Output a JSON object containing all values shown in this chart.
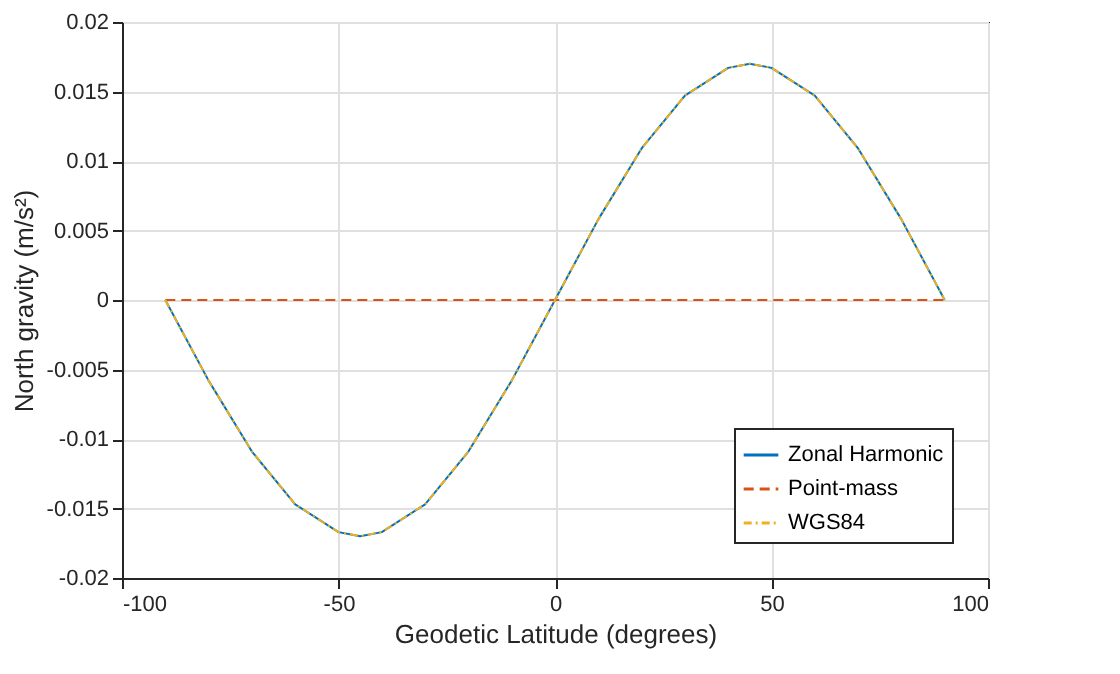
{
  "chart_data": {
    "type": "line",
    "xlabel": "Geodetic Latitude (degrees)",
    "ylabel": "North gravity (m/s²)",
    "xlim": [
      -100,
      100
    ],
    "xticks": [
      -100,
      -50,
      0,
      50,
      100
    ],
    "ylim": [
      -0.02,
      0.02
    ],
    "yticks": [
      -0.02,
      -0.015,
      -0.01,
      -0.005,
      0,
      0.005,
      0.01,
      0.015,
      0.02
    ],
    "grid": true,
    "legend": "bottom right",
    "series": [
      {
        "name": "Zonal Harmonic",
        "color": "#0072bd",
        "line_style": "solid",
        "x": [
          -90,
          -80,
          -70,
          -60,
          -50,
          -45,
          -40,
          -30,
          -20,
          -10,
          0,
          10,
          20,
          30,
          40,
          45,
          50,
          60,
          70,
          80,
          90
        ],
        "values": [
          0,
          -0.0058,
          -0.0109,
          -0.0147,
          -0.0167,
          -0.017,
          -0.0167,
          -0.0147,
          -0.0109,
          -0.0058,
          0,
          0.0058,
          0.0109,
          0.0147,
          0.0167,
          0.017,
          0.0167,
          0.0147,
          0.0109,
          0.0058,
          0
        ]
      },
      {
        "name": "Point-mass",
        "color": "#d95319",
        "line_style": "dashed",
        "x": [
          -90,
          90
        ],
        "values": [
          0,
          0
        ]
      },
      {
        "name": "WGS84",
        "color": "#edb120",
        "line_style": "dotted",
        "x": [
          -90,
          -80,
          -70,
          -60,
          -50,
          -45,
          -40,
          -30,
          -20,
          -10,
          0,
          10,
          20,
          30,
          40,
          45,
          50,
          60,
          70,
          80,
          90
        ],
        "values": [
          0,
          -0.0058,
          -0.0109,
          -0.0147,
          -0.0167,
          -0.017,
          -0.0167,
          -0.0147,
          -0.0109,
          -0.0058,
          0,
          0.0058,
          0.0109,
          0.0147,
          0.0167,
          0.017,
          0.0167,
          0.0147,
          0.0109,
          0.0058,
          0
        ]
      }
    ]
  }
}
